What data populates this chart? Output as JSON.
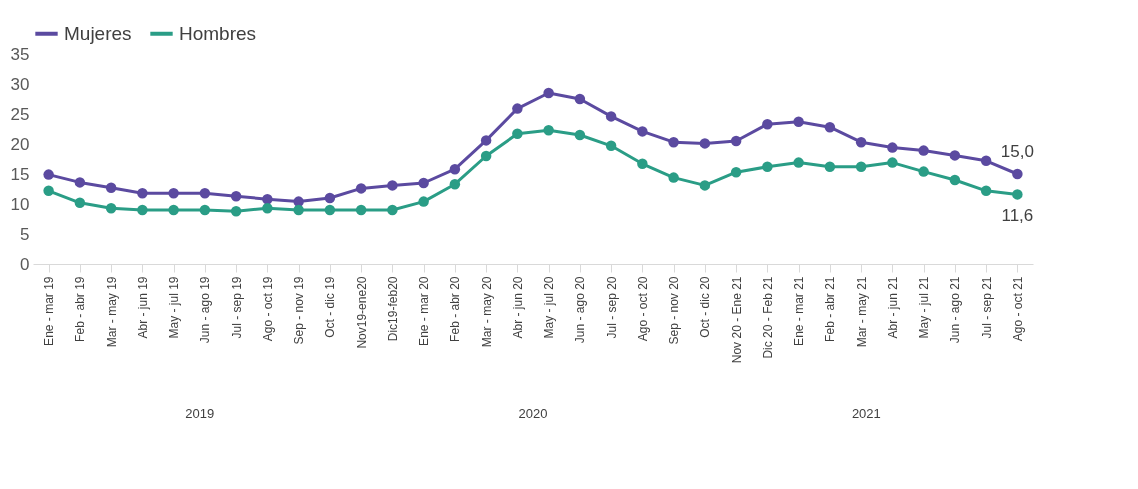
{
  "chart_data": {
    "type": "line",
    "categories": [
      "Ene - mar 19",
      "Feb - abr 19",
      "Mar - may 19",
      "Abr - jun 19",
      "May - jul 19",
      "Jun - ago 19",
      "Jul - sep 19",
      "Ago - oct 19",
      "Sep - nov 19",
      "Oct - dic 19",
      "Nov19-ene20",
      "Dic19-feb20",
      "Ene - mar 20",
      "Feb - abr 20",
      "Mar - may 20",
      "Abr - jun 20",
      "May - jul 20",
      "Jun - ago 20",
      "Jul - sep 20",
      "Ago - oct 20",
      "Sep - nov 20",
      "Oct - dic 20",
      "Nov 20 - Ene 21",
      "Dic 20 - Feb 21",
      "Ene - mar 21",
      "Feb - abr 21",
      "Mar - may 21",
      "Abr - jun 21",
      "May - jul 21",
      "Jun - ago 21",
      "Jul - sep 21",
      "Ago - oct 21"
    ],
    "series": [
      {
        "name": "Mujeres",
        "color": "#5b4aa0",
        "values": [
          14.9,
          13.6,
          12.7,
          11.8,
          11.8,
          11.8,
          11.3,
          10.8,
          10.4,
          11.0,
          12.6,
          13.1,
          13.5,
          15.8,
          20.6,
          25.9,
          28.5,
          27.5,
          24.6,
          22.1,
          20.3,
          20.1,
          20.5,
          23.3,
          23.7,
          22.8,
          20.3,
          19.4,
          18.9,
          18.1,
          17.2,
          15.0
        ],
        "value_labels": [
          null,
          null,
          null,
          null,
          null,
          null,
          null,
          null,
          null,
          null,
          null,
          null,
          null,
          null,
          null,
          null,
          null,
          null,
          null,
          null,
          null,
          null,
          null,
          null,
          null,
          null,
          null,
          null,
          null,
          null,
          null,
          "15,0"
        ]
      },
      {
        "name": "Hombres",
        "color": "#2a9d86",
        "values": [
          12.2,
          10.2,
          9.3,
          9.0,
          9.0,
          9.0,
          8.8,
          9.3,
          9.0,
          9.0,
          9.0,
          9.0,
          10.4,
          13.3,
          18.0,
          21.7,
          22.3,
          21.5,
          19.7,
          16.7,
          14.4,
          13.1,
          15.3,
          16.2,
          16.9,
          16.2,
          16.2,
          16.9,
          15.4,
          14.0,
          12.2,
          11.6
        ],
        "value_labels": [
          null,
          null,
          null,
          null,
          null,
          null,
          null,
          null,
          null,
          null,
          null,
          null,
          null,
          null,
          null,
          null,
          null,
          null,
          null,
          null,
          null,
          null,
          null,
          null,
          null,
          null,
          null,
          null,
          null,
          null,
          null,
          "11,6"
        ]
      }
    ],
    "ylim": [
      0,
      35
    ],
    "yticks": [
      0,
      5,
      10,
      15,
      20,
      25,
      30,
      35
    ],
    "grid": false,
    "legend": "top",
    "marker": "circle",
    "annotations": [
      "2019",
      "2020",
      "2021"
    ]
  }
}
